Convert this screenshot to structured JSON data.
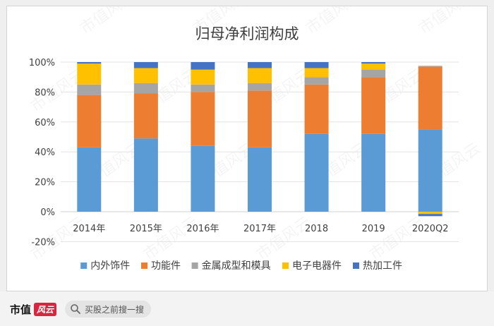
{
  "chart_data": {
    "type": "bar",
    "stacked": true,
    "title": "归母净利润构成",
    "categories": [
      "2014年",
      "2015年",
      "2016年",
      "2017年",
      "2018",
      "2019",
      "2020Q2"
    ],
    "y_ticks": [
      "100%",
      "80%",
      "60%",
      "40%",
      "20%",
      "0%",
      "-20%"
    ],
    "ylim": [
      -0.2,
      1.0
    ],
    "series": [
      {
        "name": "内外饰件",
        "color": "#5b9bd5",
        "values": [
          0.43,
          0.49,
          0.44,
          0.43,
          0.52,
          0.52,
          0.55
        ]
      },
      {
        "name": "功能件",
        "color": "#ed7d31",
        "values": [
          0.35,
          0.3,
          0.36,
          0.38,
          0.33,
          0.38,
          0.42
        ]
      },
      {
        "name": "金属成型和模具",
        "color": "#a5a5a5",
        "values": [
          0.07,
          0.07,
          0.05,
          0.05,
          0.05,
          0.05,
          0.005
        ]
      },
      {
        "name": "电子电器件",
        "color": "#ffc000",
        "values": [
          0.14,
          0.1,
          0.1,
          0.1,
          0.06,
          0.04,
          -0.015
        ]
      },
      {
        "name": "热加工件",
        "color": "#4472c4",
        "values": [
          0.01,
          0.04,
          0.05,
          0.04,
          0.04,
          0.01,
          -0.015
        ]
      }
    ],
    "legend": "bottom",
    "grid": true
  },
  "watermark_text": "市值风云",
  "footer": {
    "brand": "市值",
    "brand_stamp": "风云",
    "search_placeholder": "买股之前搜一搜"
  }
}
